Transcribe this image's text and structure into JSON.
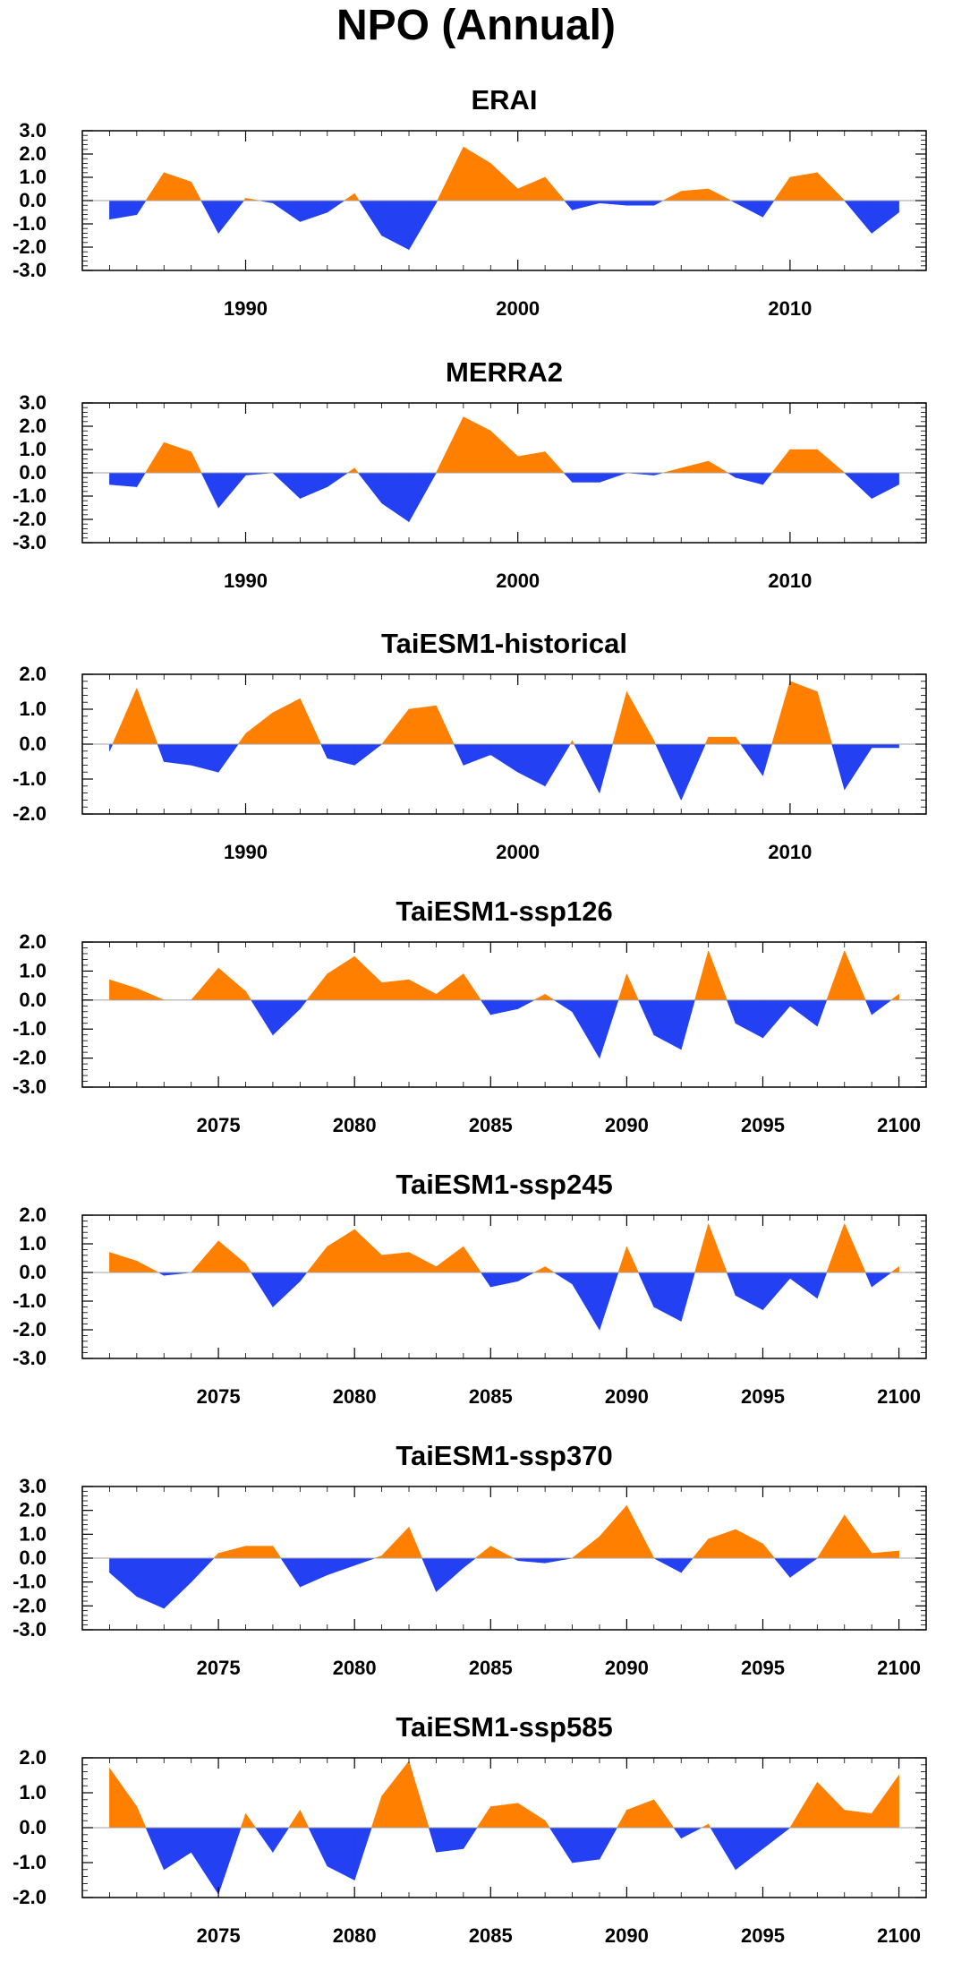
{
  "title": "NPO (Annual)",
  "colors": {
    "positive": "#ff8000",
    "negative": "#2341f2",
    "axis": "#000000",
    "zero_line": "#a0a0a0"
  },
  "chart_data": [
    {
      "type": "area",
      "title": "ERAI",
      "xlim": [
        1984,
        2015
      ],
      "ylim": [
        -3,
        3
      ],
      "xticks": [
        1990,
        2000,
        2010
      ],
      "yticks": [
        3,
        2,
        1,
        0,
        -1,
        -2,
        -3
      ],
      "ytick_labels": [
        "3.0",
        "2.0",
        "1.0",
        "0.0",
        "-1.0",
        "-2.0",
        "-3.0"
      ],
      "x": [
        1985,
        1986,
        1987,
        1988,
        1989,
        1990,
        1991,
        1992,
        1993,
        1994,
        1995,
        1996,
        1997,
        1998,
        1999,
        2000,
        2001,
        2002,
        2003,
        2004,
        2005,
        2006,
        2007,
        2008,
        2009,
        2010,
        2011,
        2012,
        2013,
        2014
      ],
      "values": [
        -0.8,
        -0.6,
        1.2,
        0.8,
        -1.4,
        0.1,
        -0.1,
        -0.9,
        -0.5,
        0.3,
        -1.5,
        -2.1,
        -0.1,
        2.3,
        1.6,
        0.5,
        1.0,
        -0.4,
        -0.1,
        -0.2,
        -0.2,
        0.4,
        0.5,
        -0.1,
        -0.7,
        1.0,
        1.2,
        0.0,
        -1.4,
        -0.5
      ]
    },
    {
      "type": "area",
      "title": "MERRA2",
      "xlim": [
        1984,
        2015
      ],
      "ylim": [
        -3,
        3
      ],
      "xticks": [
        1990,
        2000,
        2010
      ],
      "yticks": [
        3,
        2,
        1,
        0,
        -1,
        -2,
        -3
      ],
      "ytick_labels": [
        "3.0",
        "2.0",
        "1.0",
        "0.0",
        "-1.0",
        "-2.0",
        "-3.0"
      ],
      "x": [
        1985,
        1986,
        1987,
        1988,
        1989,
        1990,
        1991,
        1992,
        1993,
        1994,
        1995,
        1996,
        1997,
        1998,
        1999,
        2000,
        2001,
        2002,
        2003,
        2004,
        2005,
        2006,
        2007,
        2008,
        2009,
        2010,
        2011,
        2012,
        2013,
        2014
      ],
      "values": [
        -0.5,
        -0.6,
        1.3,
        0.9,
        -1.5,
        -0.1,
        0.0,
        -1.1,
        -0.6,
        0.2,
        -1.3,
        -2.1,
        0.0,
        2.4,
        1.8,
        0.7,
        0.9,
        -0.4,
        -0.4,
        0.0,
        -0.1,
        0.2,
        0.5,
        -0.2,
        -0.5,
        1.0,
        1.0,
        0.0,
        -1.1,
        -0.5
      ]
    },
    {
      "type": "area",
      "title": "TaiESM1-historical",
      "xlim": [
        1984,
        2015
      ],
      "ylim": [
        -2,
        2
      ],
      "xticks": [
        1990,
        2000,
        2010
      ],
      "yticks": [
        2,
        1,
        0,
        -1,
        -2
      ],
      "ytick_labels": [
        "2.0",
        "1.0",
        "0.0",
        "-1.0",
        "-2.0"
      ],
      "x": [
        1985,
        1986,
        1987,
        1988,
        1989,
        1990,
        1991,
        1992,
        1993,
        1994,
        1995,
        1996,
        1997,
        1998,
        1999,
        2000,
        2001,
        2002,
        2003,
        2004,
        2005,
        2006,
        2007,
        2008,
        2009,
        2010,
        2011,
        2012,
        2013,
        2014
      ],
      "values": [
        -0.2,
        1.6,
        -0.5,
        -0.6,
        -0.8,
        0.3,
        0.9,
        1.3,
        -0.4,
        -0.6,
        0.0,
        1.0,
        1.1,
        -0.6,
        -0.3,
        -0.8,
        -1.2,
        0.1,
        -1.4,
        1.5,
        0.1,
        -1.6,
        0.2,
        0.2,
        -0.9,
        1.8,
        1.5,
        -1.3,
        -0.1,
        -0.1
      ]
    },
    {
      "type": "area",
      "title": "TaiESM1-ssp126",
      "xlim": [
        2070,
        2101
      ],
      "ylim": [
        -3,
        2
      ],
      "xticks": [
        2075,
        2080,
        2085,
        2090,
        2095,
        2100
      ],
      "yticks": [
        2,
        1,
        0,
        -1,
        -2,
        -3
      ],
      "ytick_labels": [
        "2.0",
        "1.0",
        "0.0",
        "-1.0",
        "-2.0",
        "-3.0"
      ],
      "x": [
        2071,
        2072,
        2073,
        2074,
        2075,
        2076,
        2077,
        2078,
        2079,
        2080,
        2081,
        2082,
        2083,
        2084,
        2085,
        2086,
        2087,
        2088,
        2089,
        2090,
        2091,
        2092,
        2093,
        2094,
        2095,
        2096,
        2097,
        2098,
        2099,
        2100
      ],
      "values": [
        0.7,
        0.4,
        0.0,
        0.0,
        1.1,
        0.3,
        -1.2,
        -0.3,
        0.9,
        1.5,
        0.6,
        0.7,
        0.2,
        0.9,
        -0.5,
        -0.3,
        0.2,
        -0.4,
        -2.0,
        0.9,
        -1.2,
        -1.7,
        1.7,
        -0.8,
        -1.3,
        -0.2,
        -0.9,
        1.7,
        -0.5,
        0.2
      ]
    },
    {
      "type": "area",
      "title": "TaiESM1-ssp245",
      "xlim": [
        2070,
        2101
      ],
      "ylim": [
        -3,
        2
      ],
      "xticks": [
        2075,
        2080,
        2085,
        2090,
        2095,
        2100
      ],
      "yticks": [
        2,
        1,
        0,
        -1,
        -2,
        -3
      ],
      "ytick_labels": [
        "2.0",
        "1.0",
        "0.0",
        "-1.0",
        "-2.0",
        "-3.0"
      ],
      "x": [
        2071,
        2072,
        2073,
        2074,
        2075,
        2076,
        2077,
        2078,
        2079,
        2080,
        2081,
        2082,
        2083,
        2084,
        2085,
        2086,
        2087,
        2088,
        2089,
        2090,
        2091,
        2092,
        2093,
        2094,
        2095,
        2096,
        2097,
        2098,
        2099,
        2100
      ],
      "values": [
        0.7,
        0.4,
        -0.1,
        0.0,
        1.1,
        0.3,
        -1.2,
        -0.3,
        0.9,
        1.5,
        0.6,
        0.7,
        0.2,
        0.9,
        -0.5,
        -0.3,
        0.2,
        -0.4,
        -2.0,
        0.9,
        -1.2,
        -1.7,
        1.7,
        -0.8,
        -1.3,
        -0.2,
        -0.9,
        1.7,
        -0.5,
        0.2
      ]
    },
    {
      "type": "area",
      "title": "TaiESM1-ssp370",
      "xlim": [
        2070,
        2101
      ],
      "ylim": [
        -3,
        3
      ],
      "xticks": [
        2075,
        2080,
        2085,
        2090,
        2095,
        2100
      ],
      "yticks": [
        3,
        2,
        1,
        0,
        -1,
        -2,
        -3
      ],
      "ytick_labels": [
        "3.0",
        "2.0",
        "1.0",
        "0.0",
        "-1.0",
        "-2.0",
        "-3.0"
      ],
      "x": [
        2071,
        2072,
        2073,
        2074,
        2075,
        2076,
        2077,
        2078,
        2079,
        2080,
        2081,
        2082,
        2083,
        2084,
        2085,
        2086,
        2087,
        2088,
        2089,
        2090,
        2091,
        2092,
        2093,
        2094,
        2095,
        2096,
        2097,
        2098,
        2099,
        2100
      ],
      "values": [
        -0.6,
        -1.6,
        -2.1,
        -1.0,
        0.2,
        0.5,
        0.5,
        -1.2,
        -0.7,
        -0.3,
        0.1,
        1.3,
        -1.4,
        -0.4,
        0.5,
        -0.1,
        -0.2,
        0.0,
        0.9,
        2.2,
        0.0,
        -0.6,
        0.8,
        1.2,
        0.6,
        -0.8,
        0.0,
        1.8,
        0.2,
        0.3
      ]
    },
    {
      "type": "area",
      "title": "TaiESM1-ssp585",
      "xlim": [
        2070,
        2101
      ],
      "ylim": [
        -2,
        2
      ],
      "xticks": [
        2075,
        2080,
        2085,
        2090,
        2095,
        2100
      ],
      "yticks": [
        2,
        1,
        0,
        -1,
        -2
      ],
      "ytick_labels": [
        "2.0",
        "1.0",
        "0.0",
        "-1.0",
        "-2.0"
      ],
      "x": [
        2071,
        2072,
        2073,
        2074,
        2075,
        2076,
        2077,
        2078,
        2079,
        2080,
        2081,
        2082,
        2083,
        2084,
        2085,
        2086,
        2087,
        2088,
        2089,
        2090,
        2091,
        2092,
        2093,
        2094,
        2095,
        2096,
        2097,
        2098,
        2099,
        2100
      ],
      "values": [
        1.7,
        0.6,
        -1.2,
        -0.7,
        -1.9,
        0.4,
        -0.7,
        0.5,
        -1.1,
        -1.5,
        0.9,
        1.9,
        -0.7,
        -0.6,
        0.6,
        0.7,
        0.2,
        -1.0,
        -0.9,
        0.5,
        0.8,
        -0.3,
        0.1,
        -1.2,
        -0.6,
        0.0,
        1.3,
        0.5,
        0.4,
        1.5
      ]
    }
  ]
}
